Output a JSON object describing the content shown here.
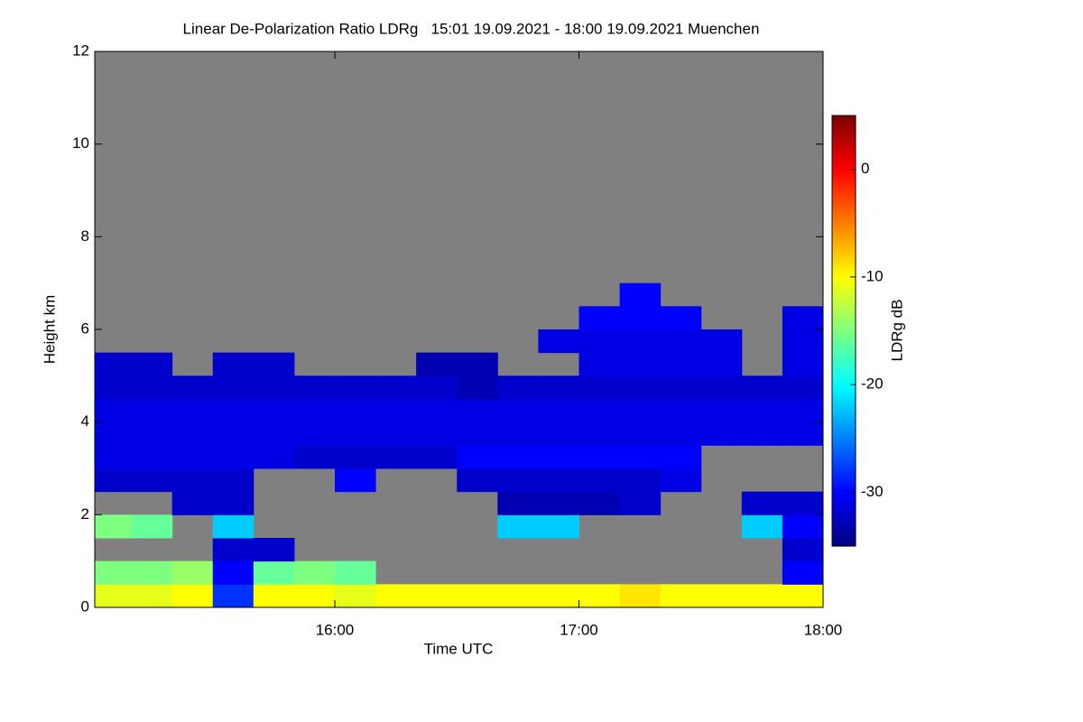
{
  "chart_data": {
    "type": "heatmap",
    "title": "Linear De-Polarization Ratio LDRg   15:01 19.09.2021 - 18:00 19.09.2021 Muenchen",
    "xlabel": "Time UTC",
    "ylabel": "Height km",
    "colorbar_label": "LDRg dB",
    "xlim": [
      1,
      180
    ],
    "xticks": [
      {
        "value": 60,
        "label": "16:00"
      },
      {
        "value": 120,
        "label": "17:00"
      },
      {
        "value": 180,
        "label": "18:00"
      }
    ],
    "ylim": [
      0,
      12
    ],
    "yticks": [
      0,
      2,
      4,
      6,
      8,
      10,
      12
    ],
    "zlim": [
      -35,
      5
    ],
    "zticks": [
      0,
      -10,
      -20,
      -30
    ],
    "colormap": [
      "#00007f",
      "#0000ff",
      "#007fff",
      "#00ffff",
      "#7fff7f",
      "#ffff00",
      "#ff7f00",
      "#ff0000",
      "#7f0000"
    ],
    "background": "#808080",
    "xbins": [
      1,
      10,
      20,
      30,
      40,
      50,
      60,
      70,
      80,
      90,
      100,
      110,
      120,
      130,
      140,
      150,
      160,
      170,
      180
    ],
    "ybins": [
      0,
      0.5,
      1,
      1.5,
      2,
      2.5,
      3,
      3.5,
      4,
      4.5,
      5,
      5.5,
      6,
      6.5,
      7
    ],
    "z": [
      [
        -11,
        -11,
        -10,
        -28,
        -10,
        -10,
        -11,
        -10,
        -10,
        -10,
        -10,
        -10,
        -10,
        -9,
        -10,
        -10,
        -10,
        -10
      ],
      [
        -15,
        -15,
        -14,
        -30,
        -16,
        -15,
        -16,
        null,
        null,
        null,
        null,
        null,
        null,
        null,
        null,
        null,
        null,
        -30
      ],
      [
        null,
        null,
        null,
        -32,
        -32,
        null,
        null,
        null,
        null,
        null,
        null,
        null,
        null,
        null,
        null,
        null,
        null,
        -32
      ],
      [
        -15,
        -16,
        null,
        -22,
        null,
        null,
        null,
        null,
        null,
        null,
        -22,
        -22,
        null,
        null,
        null,
        null,
        -22,
        -30
      ],
      [
        null,
        null,
        -32,
        -32,
        null,
        null,
        null,
        null,
        null,
        null,
        -33,
        -33,
        -33,
        -32,
        null,
        null,
        -32,
        -32
      ],
      [
        -32,
        -32,
        -32,
        -32,
        null,
        null,
        -30,
        null,
        null,
        -32,
        -32,
        -32,
        -32,
        -32,
        -31,
        null,
        null,
        null
      ],
      [
        -31,
        -31,
        -31,
        -31,
        -31,
        -32,
        -32,
        -32,
        -32,
        -30,
        -30,
        -30,
        -30,
        -30,
        -30,
        null,
        null,
        null
      ],
      [
        -31,
        -31,
        -31,
        -31,
        -31,
        -31,
        -31,
        -31,
        -31,
        -31,
        -31,
        -31,
        -31,
        -31,
        -31,
        -31,
        -31,
        -31
      ],
      [
        -31,
        -31,
        -31,
        -31,
        -31,
        -31,
        -31,
        -31,
        -31,
        -31,
        -31,
        -31,
        -31,
        -31,
        -31,
        -31,
        -31,
        -31
      ],
      [
        -32,
        -32,
        -32,
        -32,
        -32,
        -32,
        -32,
        -32,
        -32,
        -33,
        -32,
        -32,
        -32,
        -32,
        -32,
        -32,
        -32,
        -32
      ],
      [
        -32,
        -32,
        null,
        -32,
        -32,
        null,
        null,
        null,
        -33,
        -33,
        null,
        null,
        -31,
        -31,
        -31,
        -31,
        null,
        -31
      ],
      [
        null,
        null,
        null,
        null,
        null,
        null,
        null,
        null,
        null,
        null,
        null,
        -31,
        -31,
        -31,
        -31,
        -31,
        null,
        -31
      ],
      [
        null,
        null,
        null,
        null,
        null,
        null,
        null,
        null,
        null,
        null,
        null,
        null,
        -30,
        -30,
        -30,
        null,
        null,
        -31
      ],
      [
        null,
        null,
        null,
        null,
        null,
        null,
        null,
        null,
        null,
        null,
        null,
        null,
        null,
        -30,
        null,
        null,
        null,
        null
      ]
    ]
  }
}
